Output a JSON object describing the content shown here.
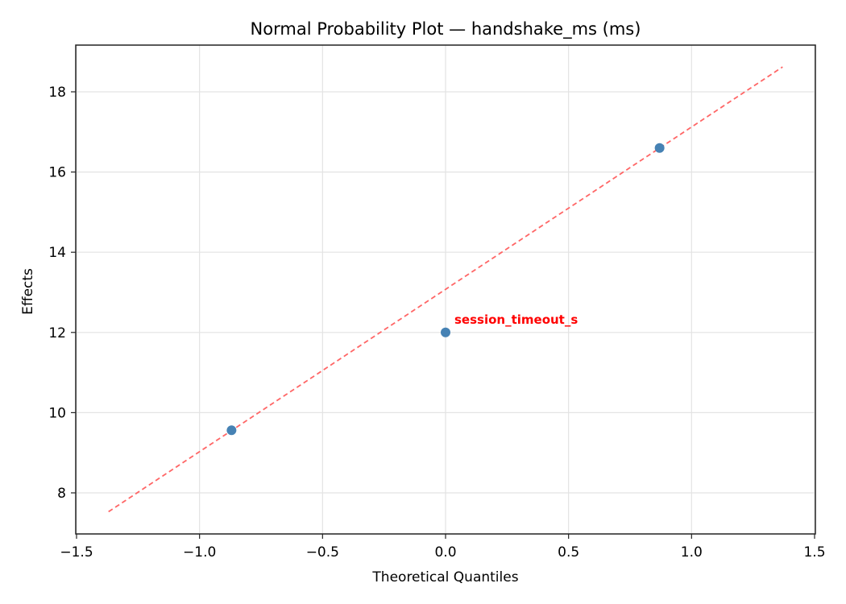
{
  "chart_data": {
    "type": "scatter",
    "title": "Normal Probability Plot — handshake_ms (ms)",
    "xlabel": "Theoretical Quantiles",
    "ylabel": "Effects",
    "xlim": [
      -1.5,
      1.5
    ],
    "ylim": [
      7.0,
      19.2
    ],
    "xticks": [
      -1.5,
      -1.0,
      -0.5,
      0.0,
      0.5,
      1.0,
      1.5
    ],
    "xtick_labels": [
      "−1.5",
      "−1.0",
      "−0.5",
      "0.0",
      "0.5",
      "1.0",
      "1.5"
    ],
    "yticks": [
      8,
      10,
      12,
      14,
      16,
      18
    ],
    "ytick_labels": [
      "8",
      "10",
      "12",
      "14",
      "16",
      "18"
    ],
    "grid": true,
    "series": [
      {
        "name": "effects",
        "x": [
          -0.87,
          0.0,
          0.87
        ],
        "y": [
          9.56,
          12.0,
          16.6
        ],
        "color": "#4682b4"
      }
    ],
    "reference_line": {
      "x": [
        -1.37,
        1.37
      ],
      "y": [
        7.53,
        18.62
      ],
      "color": "#ff6666",
      "style": "dashed"
    },
    "annotations": [
      {
        "text": "session_timeout_s",
        "x": 0.0,
        "y": 12.0,
        "color": "#ff0000"
      }
    ]
  }
}
